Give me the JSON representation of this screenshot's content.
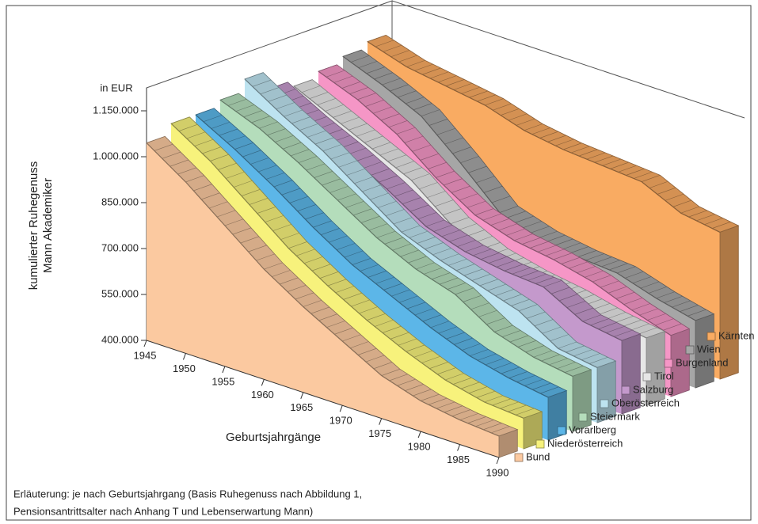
{
  "chart_data": {
    "type": "line",
    "y_label": "kumulierter Ruhegenuss\nMann Akademiker",
    "unit_label": "in EUR",
    "x_label": "Geburtsjahrgänge",
    "caption": [
      "Erläuterung: je nach Geburtsjahrgang (Basis Ruhegenuss nach Abbildung 1,",
      "Pensionsantrittsalter nach Anhang T und Lebenserwartung Mann)"
    ],
    "x": [
      1945,
      1950,
      1955,
      1960,
      1965,
      1970,
      1975,
      1980,
      1985,
      1990
    ],
    "xlim": [
      1945,
      1990
    ],
    "xticks": [
      1945,
      1950,
      1955,
      1960,
      1965,
      1970,
      1975,
      1980,
      1985,
      1990
    ],
    "ylim": [
      400000,
      1150000
    ],
    "yticks": [
      {
        "value": 400000,
        "label": "400.000"
      },
      {
        "value": 550000,
        "label": "550.000"
      },
      {
        "value": 700000,
        "label": "700.000"
      },
      {
        "value": 850000,
        "label": "850.000"
      },
      {
        "value": 1000000,
        "label": "1.000.000"
      },
      {
        "value": 1150000,
        "label": "1.150.000"
      }
    ],
    "grid": false,
    "series": [
      {
        "name": "Bund",
        "color": "#fbc9a0",
        "values": [
          1045000,
          960000,
          860000,
          760000,
          680000,
          610000,
          540000,
          500000,
          480000,
          470000
        ]
      },
      {
        "name": "Niederösterreich",
        "color": "#f7f27c",
        "values": [
          1080000,
          1000000,
          900000,
          800000,
          720000,
          650000,
          590000,
          540000,
          510000,
          500000
        ]
      },
      {
        "name": "Vorarlberg",
        "color": "#5cb6e8",
        "values": [
          1080000,
          1010000,
          930000,
          840000,
          760000,
          700000,
          640000,
          590000,
          560000,
          540000
        ]
      },
      {
        "name": "Steiermark",
        "color": "#b4ddbb",
        "values": [
          1100000,
          1050000,
          980000,
          900000,
          820000,
          760000,
          720000,
          640000,
          600000,
          580000
        ]
      },
      {
        "name": "Oberösterreich",
        "color": "#bde3f0",
        "values": [
          1140000,
          1060000,
          990000,
          900000,
          810000,
          760000,
          720000,
          680000,
          600000,
          580000
        ]
      },
      {
        "name": "Salzburg",
        "color": "#c499cc",
        "values": [
          1080000,
          1010000,
          950000,
          880000,
          800000,
          760000,
          740000,
          730000,
          660000,
          640000
        ]
      },
      {
        "name": "Tirol",
        "color": "#e6e6e6",
        "values": [
          1060000,
          1000000,
          940000,
          880000,
          780000,
          720000,
          690000,
          670000,
          640000,
          620000
        ]
      },
      {
        "name": "Burgenland",
        "color": "#f596c6",
        "values": [
          1080000,
          1030000,
          960000,
          860000,
          780000,
          740000,
          720000,
          690000,
          640000,
          600000
        ]
      },
      {
        "name": "Wien",
        "color": "#a6a6a6",
        "values": [
          1100000,
          1050000,
          990000,
          880000,
          760000,
          720000,
          700000,
          690000,
          650000,
          620000
        ]
      },
      {
        "name": "Kärnten",
        "color": "#f9ab62",
        "values": [
          1120000,
          1080000,
          1060000,
          1040000,
          1000000,
          980000,
          970000,
          960000,
          900000,
          880000
        ]
      }
    ]
  }
}
